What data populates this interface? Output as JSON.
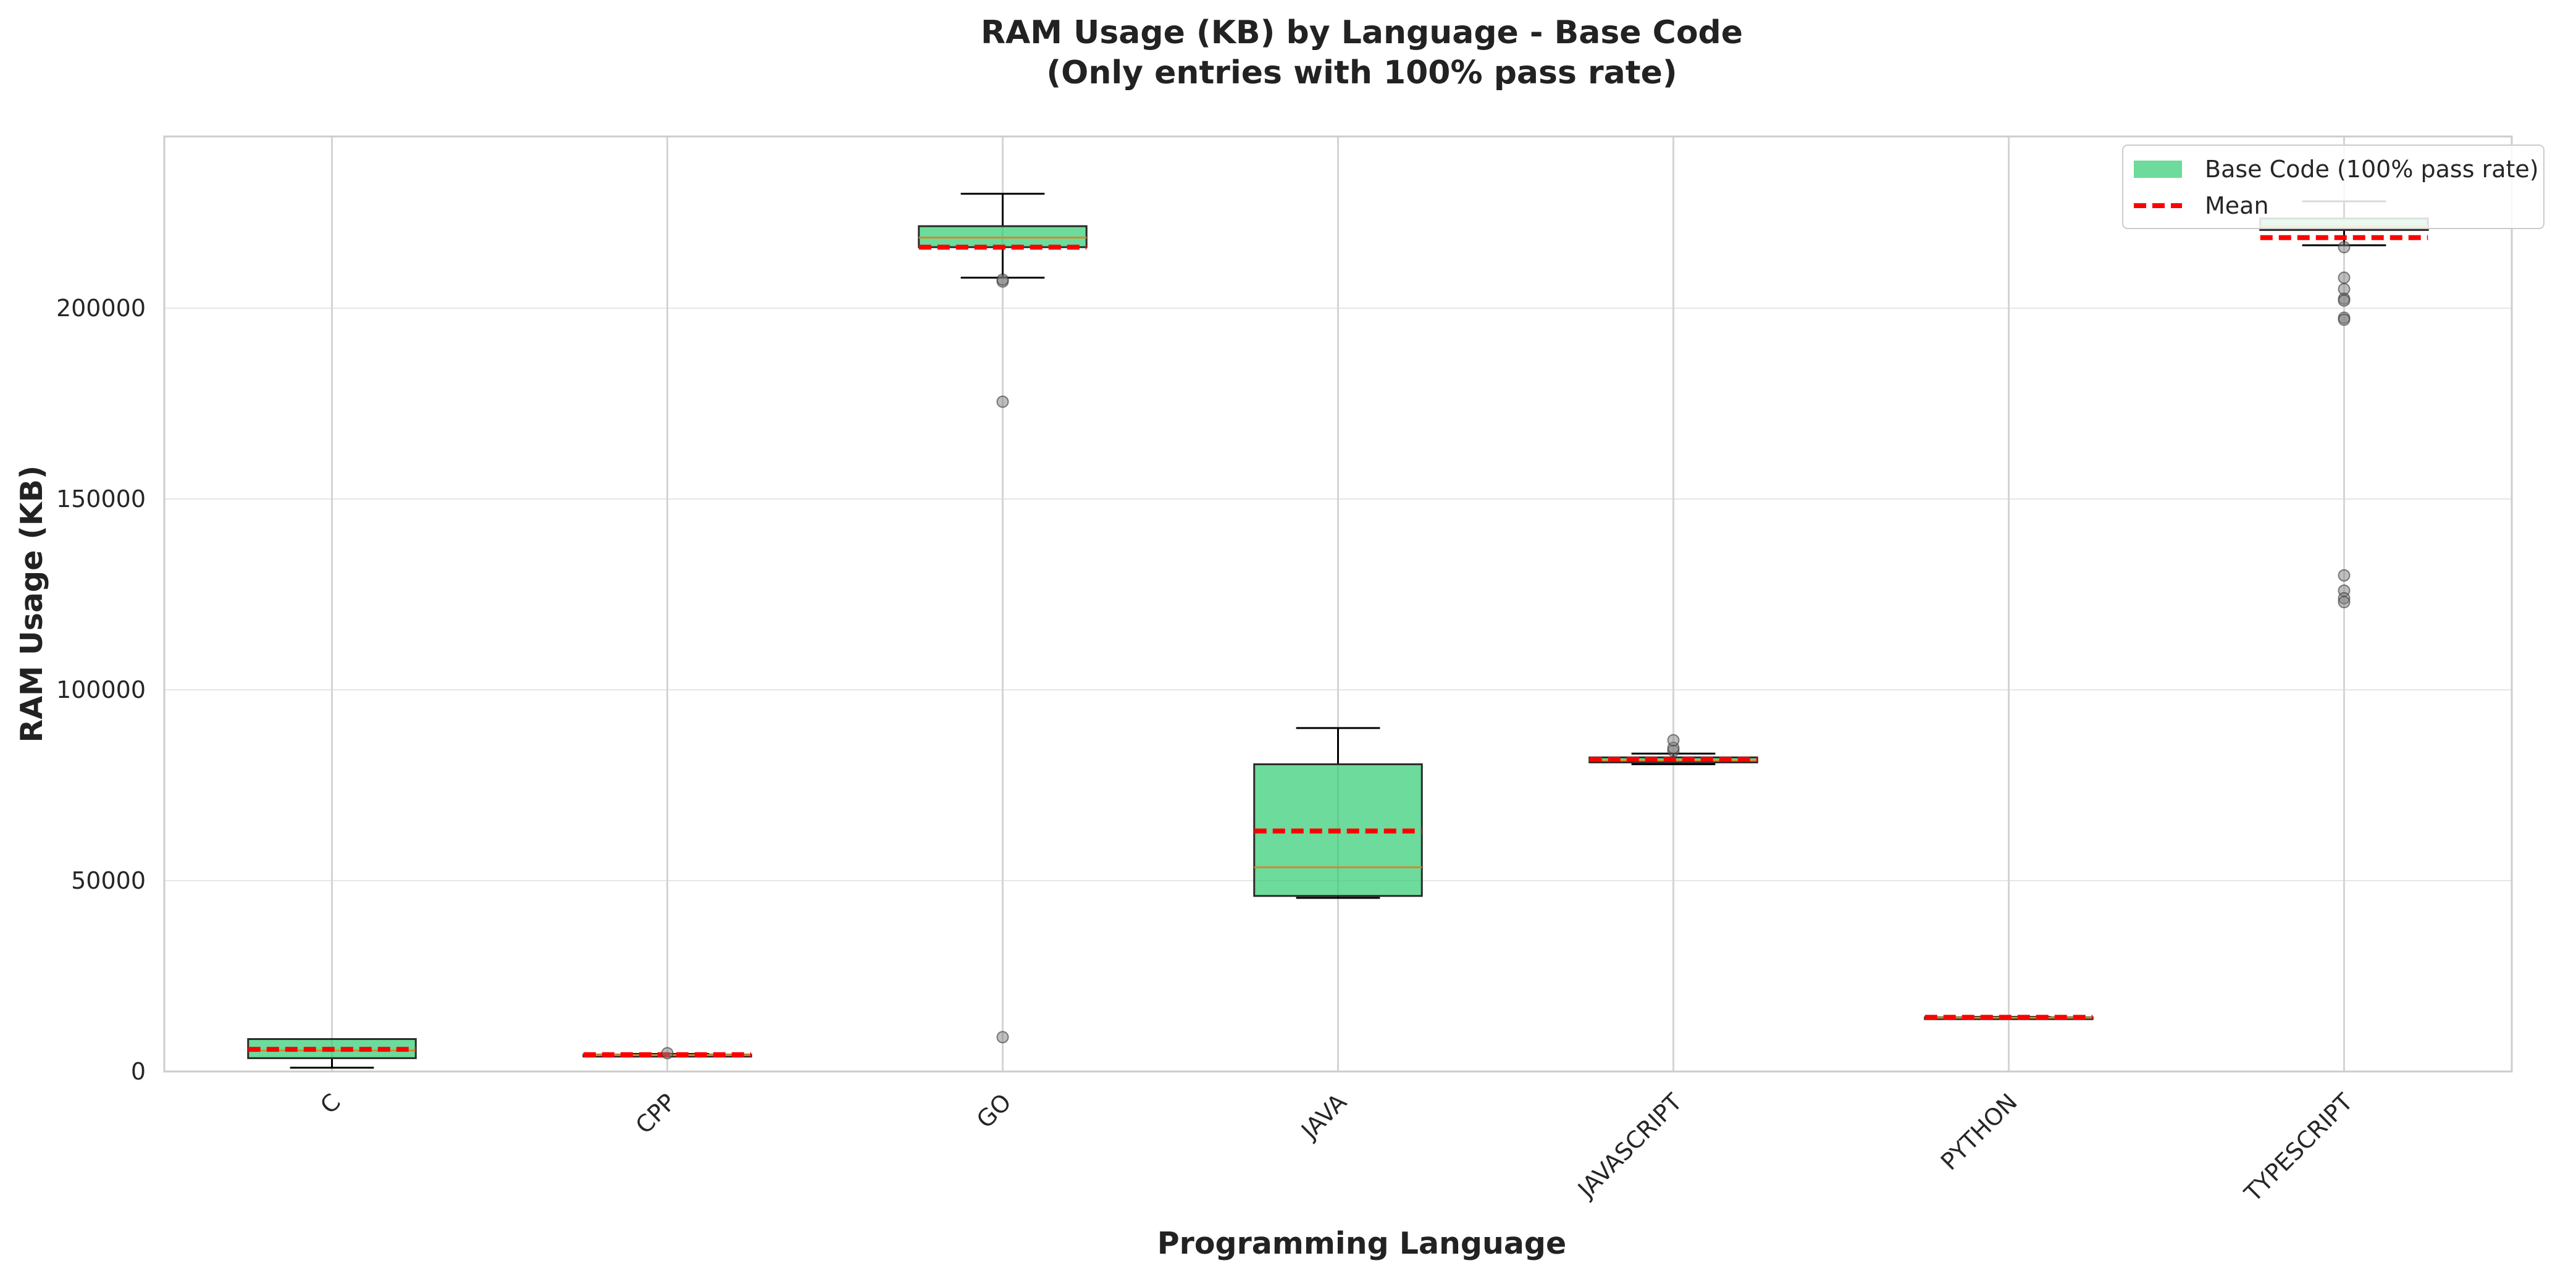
{
  "chart_data": {
    "type": "box",
    "title": "RAM Usage (KB) by Language - Base Code",
    "subtitle": "(Only entries with 100% pass rate)",
    "xlabel": "Programming Language",
    "ylabel": "RAM Usage (KB)",
    "ylim": [
      0,
      245000
    ],
    "yticks": [
      0,
      50000,
      100000,
      150000,
      200000
    ],
    "grid": true,
    "legend_position": "top-right",
    "legend": {
      "box_label": "Base Code (100% pass rate)",
      "mean_label": "Mean"
    },
    "colors": {
      "box_fill": "#2ecc71",
      "mean_line": "#ff0000",
      "median_line": "#d08a2c",
      "whisker": "#000000",
      "outlier": "#7f7f7f",
      "grid": "#e6e6e6"
    },
    "categories": [
      "C",
      "CPP",
      "GO",
      "JAVA",
      "JAVASCRIPT",
      "PYTHON",
      "TYPESCRIPT"
    ],
    "boxes": [
      {
        "category": "C",
        "whisker_low": 1000,
        "q1": 3500,
        "median": 5500,
        "q3": 8500,
        "whisker_high": 8500,
        "mean": 5800,
        "outliers": []
      },
      {
        "category": "CPP",
        "whisker_low": 4000,
        "q1": 4200,
        "median": 4300,
        "q3": 4400,
        "whisker_high": 4600,
        "mean": 4400,
        "outliers": [
          4800
        ]
      },
      {
        "category": "GO",
        "whisker_low": 208000,
        "q1": 216000,
        "median": 218500,
        "q3": 221500,
        "whisker_high": 230000,
        "mean": 216000,
        "outliers": [
          207000,
          207500,
          175500,
          9000
        ]
      },
      {
        "category": "JAVA",
        "whisker_low": 45500,
        "q1": 46000,
        "median": 53500,
        "q3": 80500,
        "whisker_high": 90000,
        "mean": 63000,
        "outliers": []
      },
      {
        "category": "JAVASCRIPT",
        "whisker_low": 80500,
        "q1": 81000,
        "median": 81500,
        "q3": 82300,
        "whisker_high": 83300,
        "mean": 81800,
        "outliers": [
          84000,
          84800,
          86800
        ]
      },
      {
        "category": "PYTHON",
        "whisker_low": 13900,
        "q1": 14000,
        "median": 14100,
        "q3": 14200,
        "whisker_high": 14300,
        "mean": 14200,
        "outliers": []
      },
      {
        "category": "TYPESCRIPT",
        "whisker_low": 216500,
        "q1": 220500,
        "median": 221500,
        "q3": 223500,
        "whisker_high": 228000,
        "mean": 218500,
        "outliers": [
          216000,
          208000,
          205000,
          202500,
          202000,
          197500,
          197000,
          130000,
          126000,
          124000,
          123000
        ]
      }
    ]
  }
}
